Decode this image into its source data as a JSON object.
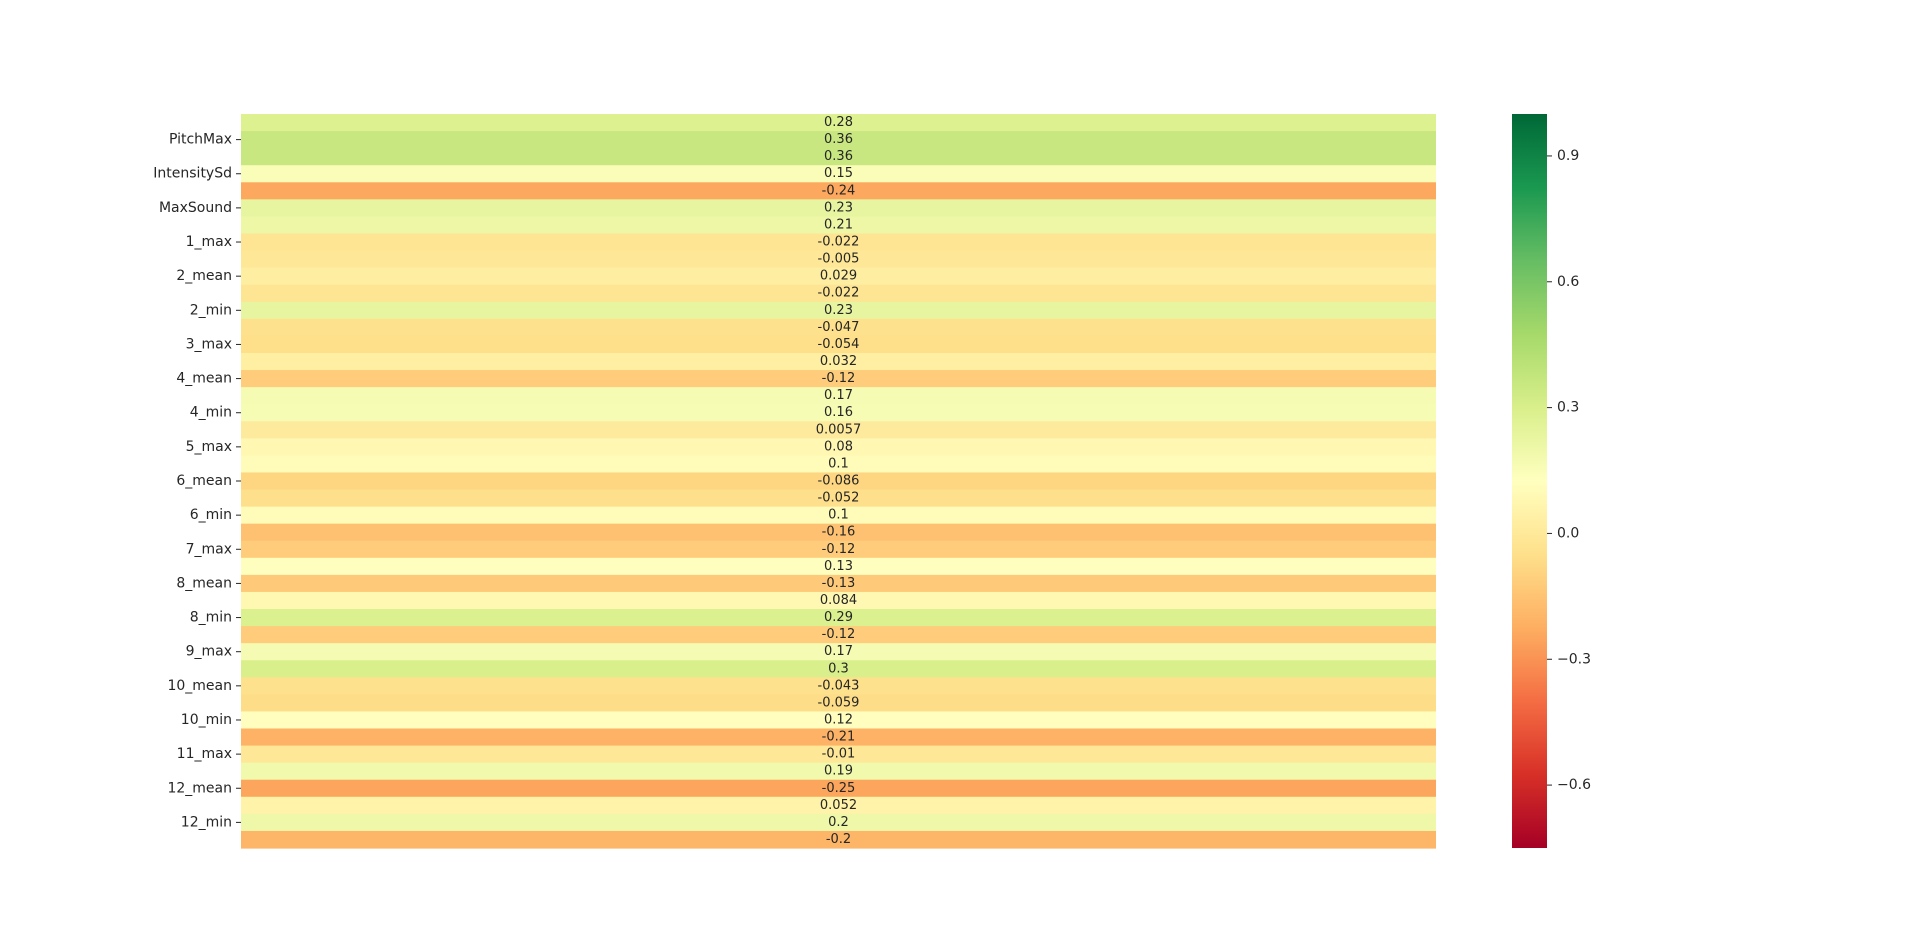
{
  "chart_data": {
    "type": "heatmap",
    "title": "",
    "xlabel": "",
    "ylabel": "",
    "colormap": "RdYlGn",
    "vmin": -0.75,
    "vmax": 1.0,
    "annotated": true,
    "row_tick_labels": [
      "PitchMax",
      "IntensitySd",
      "MaxSound",
      "1_max",
      "2_mean",
      "2_min",
      "3_max",
      "4_mean",
      "4_min",
      "5_max",
      "6_mean",
      "6_min",
      "7_max",
      "8_mean",
      "8_min",
      "9_max",
      "10_mean",
      "10_min",
      "11_max",
      "12_mean",
      "12_min"
    ],
    "row_tick_every": 2,
    "row_tick_offset": 1,
    "values": [
      0.28,
      0.36,
      0.36,
      0.15,
      -0.24,
      0.23,
      0.21,
      -0.022,
      -0.005,
      0.029,
      -0.022,
      0.23,
      -0.047,
      -0.054,
      0.032,
      -0.12,
      0.17,
      0.16,
      0.0057,
      0.08,
      0.1,
      -0.086,
      -0.052,
      0.1,
      -0.16,
      -0.12,
      0.13,
      -0.13,
      0.084,
      0.29,
      -0.12,
      0.17,
      0.3,
      -0.043,
      -0.059,
      0.12,
      -0.21,
      -0.01,
      0.19,
      -0.25,
      0.052,
      0.2,
      -0.2
    ],
    "value_labels": [
      "0.28",
      "0.36",
      "0.36",
      "0.15",
      "-0.24",
      "0.23",
      "0.21",
      "-0.022",
      "-0.005",
      "0.029",
      "-0.022",
      "0.23",
      "-0.047",
      "-0.054",
      "0.032",
      "-0.12",
      "0.17",
      "0.16",
      "0.0057",
      "0.08",
      "0.1",
      "-0.086",
      "-0.052",
      "0.1",
      "-0.16",
      "-0.12",
      "0.13",
      "-0.13",
      "0.084",
      "0.29",
      "-0.12",
      "0.17",
      "0.3",
      "-0.043",
      "-0.059",
      "0.12",
      "-0.21",
      "-0.01",
      "0.19",
      "-0.25",
      "0.052",
      "0.2",
      "-0.2"
    ],
    "colorbar": {
      "ticks": [
        0.9,
        0.6,
        0.3,
        0.0,
        -0.3,
        -0.6
      ],
      "tick_labels": [
        "0.9",
        "0.6",
        "0.3",
        "0.0",
        "−0.3",
        "−0.6"
      ]
    }
  }
}
